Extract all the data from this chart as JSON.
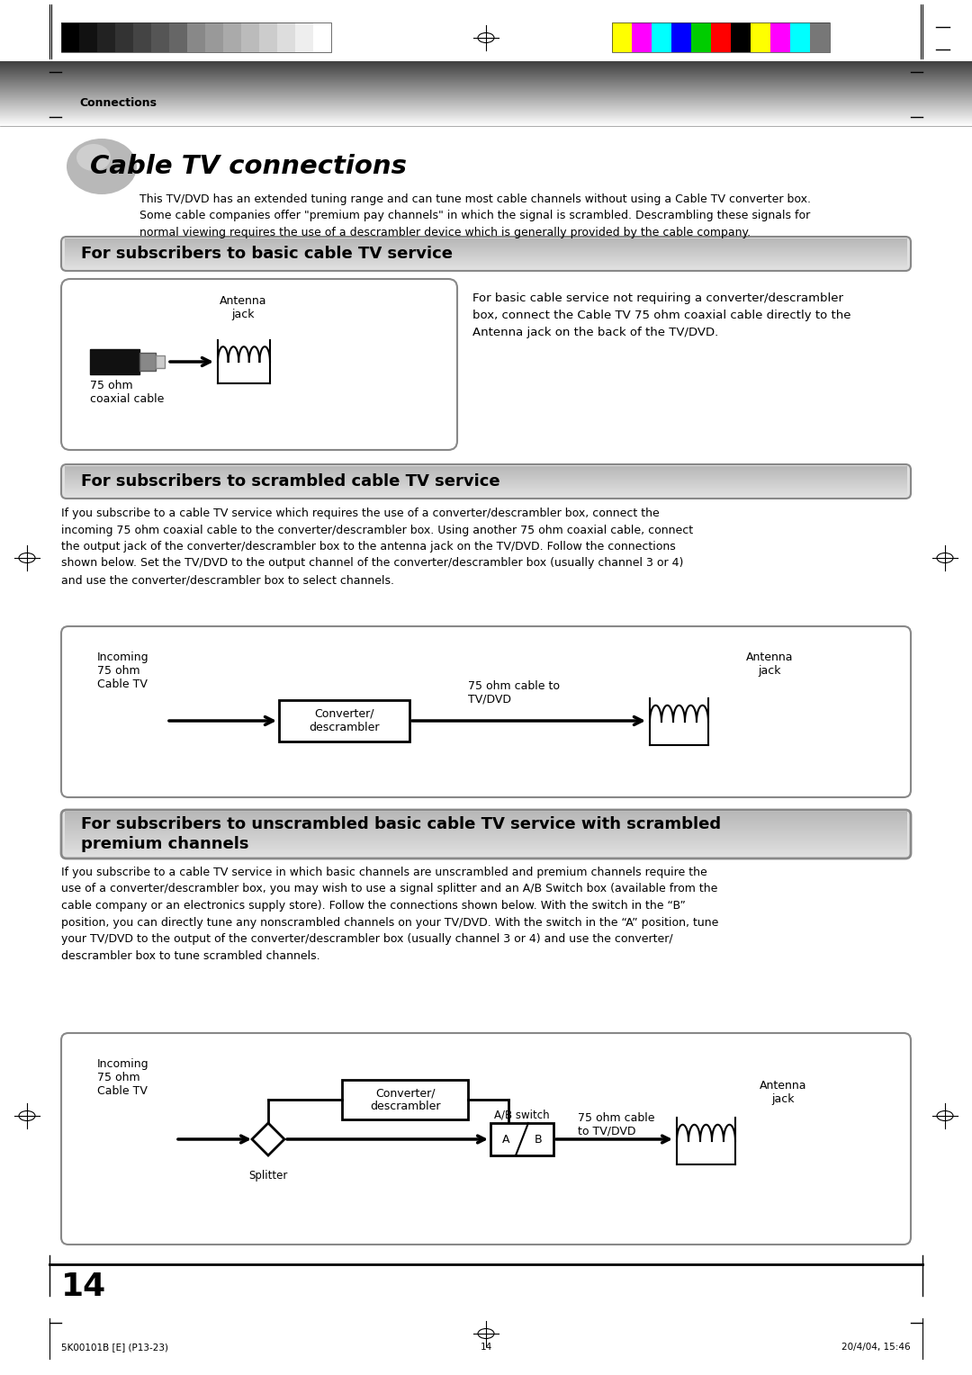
{
  "page_bg": "#ffffff",
  "connections_label": "Connections",
  "title": "Cable TV connections",
  "intro_text": "This TV/DVD has an extended tuning range and can tune most cable channels without using a Cable TV converter box.\nSome cable companies offer \"premium pay channels\" in which the signal is scrambled. Descrambling these signals for\nnormal viewing requires the use of a descrambler device which is generally provided by the cable company.",
  "section1_title": "For subscribers to basic cable TV service",
  "section1_desc": "For basic cable service not requiring a converter/descrambler\nbox, connect the Cable TV 75 ohm coaxial cable directly to the\nAntenna jack on the back of the TV/DVD.",
  "section1_cable_label": "75 ohm\ncoaxial cable",
  "section1_antenna_label": "Antenna\njack",
  "section2_title": "For subscribers to scrambled cable TV service",
  "section2_desc": "If you subscribe to a cable TV service which requires the use of a converter/descrambler box, connect the\nincoming 75 ohm coaxial cable to the converter/descrambler box. Using another 75 ohm coaxial cable, connect\nthe output jack of the converter/descrambler box to the antenna jack on the TV/DVD. Follow the connections\nshown below. Set the TV/DVD to the output channel of the converter/descrambler box (usually channel 3 or 4)\nand use the converter/descrambler box to select channels.",
  "section2_incoming": "Incoming\n75 ohm\nCable TV",
  "section2_converter": "Converter/\ndescrambler",
  "section2_cable_label": "75 ohm cable to\nTV/DVD",
  "section2_antenna": "Antenna\njack",
  "section3_title": "For subscribers to unscrambled basic cable TV service with scrambled\npremium channels",
  "section3_desc": "If you subscribe to a cable TV service in which basic channels are unscrambled and premium channels require the\nuse of a converter/descrambler box, you may wish to use a signal splitter and an A/B Switch box (available from the\ncable company or an electronics supply store). Follow the connections shown below. With the switch in the “B”\nposition, you can directly tune any nonscrambled channels on your TV/DVD. With the switch in the “A” position, tune\nyour TV/DVD to the output of the converter/descrambler box (usually channel 3 or 4) and use the converter/\ndescrambler box to tune scrambled channels.",
  "section3_incoming": "Incoming\n75 ohm\nCable TV",
  "section3_converter": "Converter/\ndescrambler",
  "section3_splitter": "Splitter",
  "section3_ab": "A/B switch",
  "section3_cable_label": "75 ohm cable\nto TV/DVD",
  "section3_antenna": "Antenna\njack",
  "page_number": "14",
  "footer_left": "5K00101B [E] (P13-23)",
  "footer_center": "14",
  "footer_right": "20/4/04, 15:46",
  "color_bars_left": [
    "#000000",
    "#111111",
    "#222222",
    "#333333",
    "#444444",
    "#555555",
    "#666666",
    "#888888",
    "#999999",
    "#aaaaaa",
    "#bbbbbb",
    "#cccccc",
    "#dddddd",
    "#eeeeee",
    "#ffffff"
  ],
  "color_bars_right": [
    "#ffff00",
    "#ff00ff",
    "#00ffff",
    "#0000ff",
    "#00cc00",
    "#ff0000",
    "#000000",
    "#ffff00",
    "#ff00ff",
    "#00ffff",
    "#777777"
  ]
}
